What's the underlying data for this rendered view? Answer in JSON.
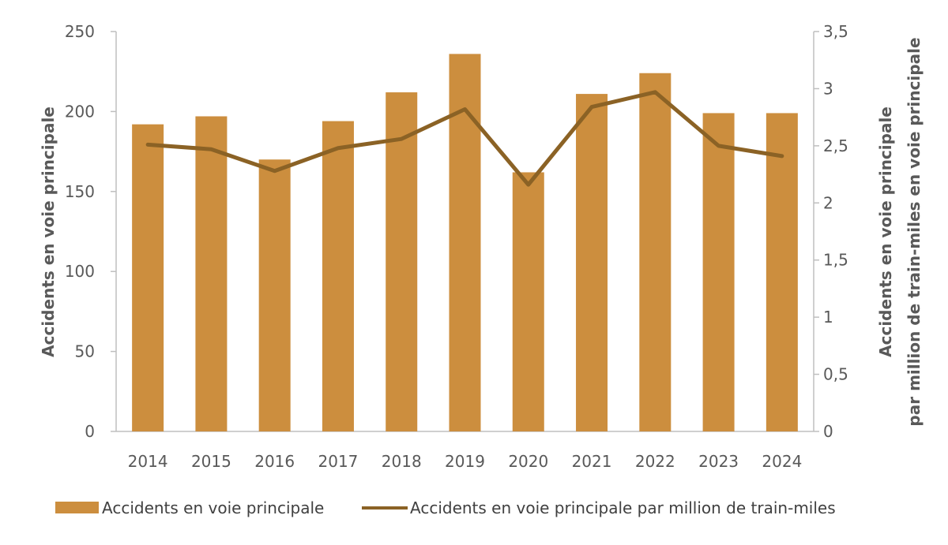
{
  "chart_data": {
    "type": "bar",
    "categories": [
      "2014",
      "2015",
      "2016",
      "2017",
      "2018",
      "2019",
      "2020",
      "2021",
      "2022",
      "2023",
      "2024"
    ],
    "series": [
      {
        "name": "Accidents en voie principale",
        "kind": "bar",
        "axis": "left",
        "color": "#CC8E3E",
        "values": [
          192,
          197,
          170,
          194,
          212,
          236,
          162,
          211,
          224,
          199,
          199
        ]
      },
      {
        "name": "Accidents en voie principale par million de train-miles",
        "kind": "line",
        "axis": "right",
        "color": "#8B6225",
        "values": [
          2.51,
          2.47,
          2.28,
          2.48,
          2.56,
          2.82,
          2.16,
          2.84,
          2.97,
          2.5,
          2.41
        ]
      }
    ],
    "y_left": {
      "label": "Accidents en voie principale",
      "ylim": [
        0,
        250
      ],
      "ticks": [
        "0",
        "50",
        "100",
        "150",
        "200",
        "250"
      ]
    },
    "y_right": {
      "label_line1": "Accidents en voie principale",
      "label_line2": "par million de train-miles en voie principale",
      "ylim": [
        0,
        3.5
      ],
      "ticks": [
        "0",
        "0,5",
        "1",
        "1,5",
        "2",
        "2,5",
        "3",
        "3,5"
      ]
    },
    "grid": false,
    "legend_position": "bottom"
  }
}
